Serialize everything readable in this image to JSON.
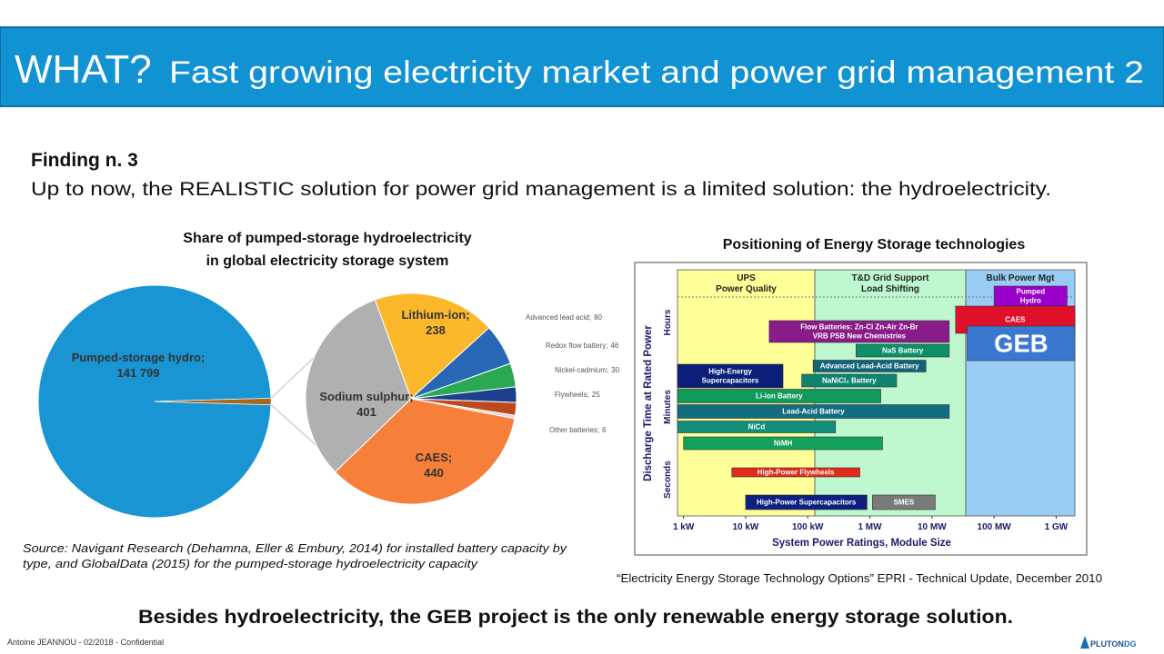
{
  "header": {
    "lead": "WHAT?",
    "title": "Fast growing electricity market and power grid management 2"
  },
  "finding": {
    "heading": "Finding n. 3",
    "text": "Up to now, the REALISTIC solution for power grid management is a limited solution: the hydroelectricity."
  },
  "chart_data": [
    {
      "type": "pie-of-pie",
      "title": [
        "Share of pumped-storage hydroelectricity",
        "in global electricity storage system"
      ],
      "categories": [
        "Pumped-storage hydro;",
        "Lithium-ion;",
        "Advanced lead acid;",
        "Redox flow battery;",
        "Nickel-cadmium;",
        "Flywheels;",
        "Other batteries;",
        "CAES;",
        "Sodium sulphur;"
      ],
      "values": [
        141799,
        238,
        80,
        46,
        30,
        25,
        6,
        440,
        401
      ],
      "value_labels": [
        "141 799",
        "238",
        "80",
        "46",
        "30",
        "25",
        "6",
        "440",
        "401"
      ],
      "colors": [
        "#1a95d3",
        "#fbb82a",
        "#2767b3",
        "#2aa953",
        "#1c3f8e",
        "#bd4a1e",
        "#d9d9d9",
        "#f6803a",
        "#b0b0b0"
      ],
      "aggregate_color": "#a8681c"
    },
    {
      "type": "range-bar",
      "title": "Positioning of Energy Storage technologies",
      "x_label": "System Power Ratings, Module Size",
      "y_label": "Discharge Time at Rated Power",
      "y_categories": [
        "Hours",
        "Minutes",
        "Seconds"
      ],
      "xscale": "log",
      "xlim": [
        0.8,
        2000000
      ],
      "xticks": [
        {
          "value": 1,
          "label": "1 kW"
        },
        {
          "value": 10,
          "label": "10 kW"
        },
        {
          "value": 100,
          "label": "100 kW"
        },
        {
          "value": 1000,
          "label": "1 MW"
        },
        {
          "value": 10000,
          "label": "10 MW"
        },
        {
          "value": 100000,
          "label": "100 MW"
        },
        {
          "value": 1000000,
          "label": "1 GW"
        }
      ],
      "regions": [
        {
          "name": [
            "UPS",
            "Power Quality"
          ],
          "range": [
            0.8,
            130
          ],
          "color": "#ffff99"
        },
        {
          "name": [
            "T&D Grid Support",
            "Load Shifting"
          ],
          "range": [
            130,
            35000
          ],
          "color": "#bff7cf"
        },
        {
          "name": [
            "Bulk Power Mgt"
          ],
          "range": [
            35000,
            2000000
          ],
          "color": "#99ccf2"
        }
      ],
      "bars": [
        {
          "name": [
            "Pumped",
            "Hydro"
          ],
          "range": [
            100000,
            1500000
          ],
          "color": "#9900cc"
        },
        {
          "name": [
            "CAES"
          ],
          "range": [
            24000,
            2000000
          ],
          "color": "#e0102a"
        },
        {
          "name": [
            "GEB"
          ],
          "range": [
            37000,
            2000000
          ],
          "color": "#3a78d0"
        },
        {
          "name": [
            "Flow Batteries:  Zn-Cl   Zn-Air   Zn-Br",
            "VRB      PSB      New Chemistries"
          ],
          "range": [
            24,
            19000
          ],
          "color": "#8a1c8a"
        },
        {
          "name": [
            "NaS Battery"
          ],
          "range": [
            600,
            19000
          ],
          "color": "#0e8f6a"
        },
        {
          "name": [
            "Advanced Lead-Acid Battery"
          ],
          "range": [
            122,
            8000
          ],
          "color": "#12637a"
        },
        {
          "name": [
            "High-Energy",
            "Supercapacitors"
          ],
          "range": [
            0.8,
            40
          ],
          "color": "#0b1f78"
        },
        {
          "name": [
            "NaNiCl₂ Battery"
          ],
          "range": [
            80,
            2700
          ],
          "color": "#0e8370"
        },
        {
          "name": [
            "Li-ion Battery"
          ],
          "range": [
            0.8,
            1500
          ],
          "color": "#109a5c"
        },
        {
          "name": [
            "Lead-Acid Battery"
          ],
          "range": [
            0.8,
            19000
          ],
          "color": "#136d80"
        },
        {
          "name": [
            "NiCd"
          ],
          "range": [
            0.8,
            280
          ],
          "color": "#118d7a"
        },
        {
          "name": [
            "NiMH"
          ],
          "range": [
            1,
            1600
          ],
          "color": "#13a05c"
        },
        {
          "name": [
            "High-Power Flywheels"
          ],
          "range": [
            6,
            690
          ],
          "color": "#e02a1a"
        },
        {
          "name": [
            "High-Power Supercapacitors"
          ],
          "range": [
            10,
            900
          ],
          "color": "#0d1f80"
        },
        {
          "name": [
            "SMES"
          ],
          "range": [
            1100,
            11300
          ],
          "color": "#7a7a7a"
        }
      ]
    }
  ],
  "source_note": [
    "Source: Navigant Research (Dehamna, Eller & Embury, 2014) for installed battery capacity by",
    "type, and GlobalData (2015) for the pumped-storage hydroelectricity capacity"
  ],
  "citation": "“Electricity Energy Storage Technology Options” EPRI  - Technical Update, December 2010",
  "conclusion": "Besides hydroelectricity, the GEB project is the only renewable energy storage solution.",
  "footer": {
    "author": "Antoine JEANNOU - 02/2018 - Confidential",
    "logo_name": "PLUTON",
    "logo_suffix": "DG"
  }
}
